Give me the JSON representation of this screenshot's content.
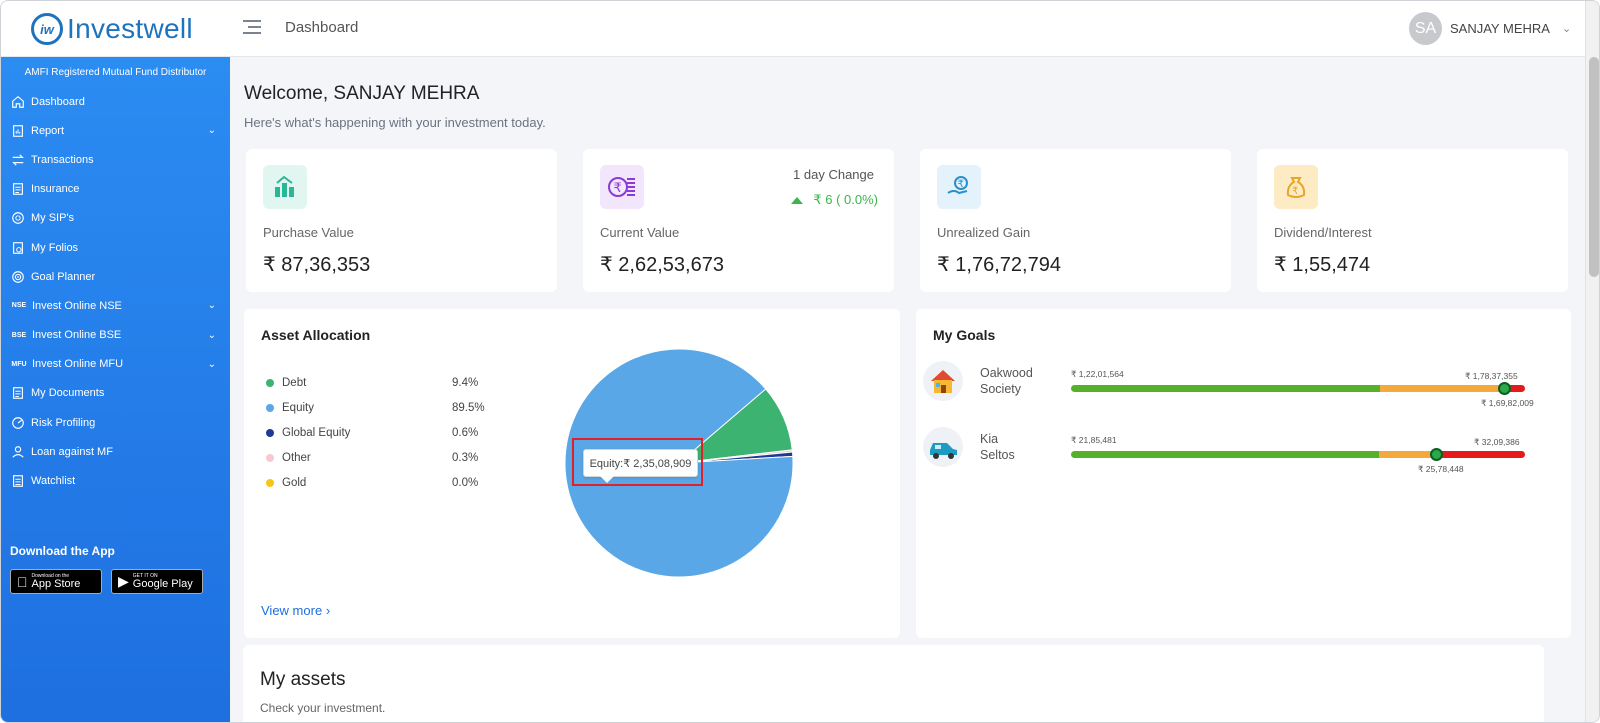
{
  "header": {
    "logo_mark": "iw",
    "logo_text": "Investwell",
    "breadcrumb": "Dashboard",
    "user_initials": "SA",
    "user_name": "SANJAY MEHRA"
  },
  "sidebar": {
    "amfi": "AMFI Registered Mutual Fund Distributor",
    "items": [
      {
        "label": "Dashboard",
        "icon": "home-icon"
      },
      {
        "label": "Report",
        "icon": "report-icon",
        "expandable": true
      },
      {
        "label": "Transactions",
        "icon": "transfer-icon"
      },
      {
        "label": "Insurance",
        "icon": "document-icon"
      },
      {
        "label": "My SIP's",
        "icon": "sip-icon"
      },
      {
        "label": "My Folios",
        "icon": "folio-icon"
      },
      {
        "label": "Goal Planner",
        "icon": "target-icon"
      },
      {
        "label": "Invest Online NSE",
        "icon": "NSE",
        "expandable": true
      },
      {
        "label": "Invest Online BSE",
        "icon": "BSE",
        "expandable": true
      },
      {
        "label": "Invest Online MFU",
        "icon": "MFU",
        "expandable": true
      },
      {
        "label": "My Documents",
        "icon": "document-icon"
      },
      {
        "label": "Risk Profiling",
        "icon": "gauge-icon"
      },
      {
        "label": "Loan against MF",
        "icon": "loan-icon"
      },
      {
        "label": "Watchlist",
        "icon": "list-icon"
      }
    ],
    "download_title": "Download the App",
    "app_store_small": "Download on the",
    "app_store_big": "App Store",
    "google_small": "GET IT ON",
    "google_big": "Google Play"
  },
  "main": {
    "welcome": "Welcome, SANJAY MEHRA",
    "subtitle": "Here's what's happening with your investment today.",
    "stats": [
      {
        "label": "Purchase Value",
        "value": "₹ 87,36,353"
      },
      {
        "label": "Current Value",
        "value": "₹ 2,62,53,673",
        "change_label": "1 day Change",
        "change_value": "₹ 6 ( 0.0%)"
      },
      {
        "label": "Unrealized Gain",
        "value": "₹ 1,76,72,794"
      },
      {
        "label": "Dividend/Interest",
        "value": "₹ 1,55,474"
      }
    ],
    "asset_allocation": {
      "title": "Asset Allocation",
      "view_more": "View more",
      "tooltip": "Equity:₹ 2,35,08,909"
    },
    "goals": {
      "title": "My Goals",
      "items": [
        {
          "name_line1": "Oakwood",
          "name_line2": "Society",
          "start": "₹ 1,22,01,564",
          "target": "₹ 1,78,37,355",
          "current": "₹ 1,69,82,009",
          "progress": 0.953
        },
        {
          "name_line1": "Kia",
          "name_line2": "Seltos",
          "start": "₹ 21,85,481",
          "target": "₹ 32,09,386",
          "current": "₹ 25,78,448",
          "progress": 0.804
        }
      ]
    },
    "assets": {
      "title": "My assets",
      "subtitle": "Check your investment."
    }
  },
  "chart_data": {
    "type": "pie",
    "title": "Asset Allocation",
    "categories": [
      "Debt",
      "Equity",
      "Global Equity",
      "Other",
      "Gold"
    ],
    "labels": [
      "9.4%",
      "89.5%",
      "0.6%",
      "0.3%",
      "0.0%"
    ],
    "values": [
      9.4,
      89.5,
      0.6,
      0.3,
      0.0
    ],
    "colors": [
      "#3cb371",
      "#5aa7e8",
      "#1f3a93",
      "#f6c9d2",
      "#f5c518"
    ]
  }
}
